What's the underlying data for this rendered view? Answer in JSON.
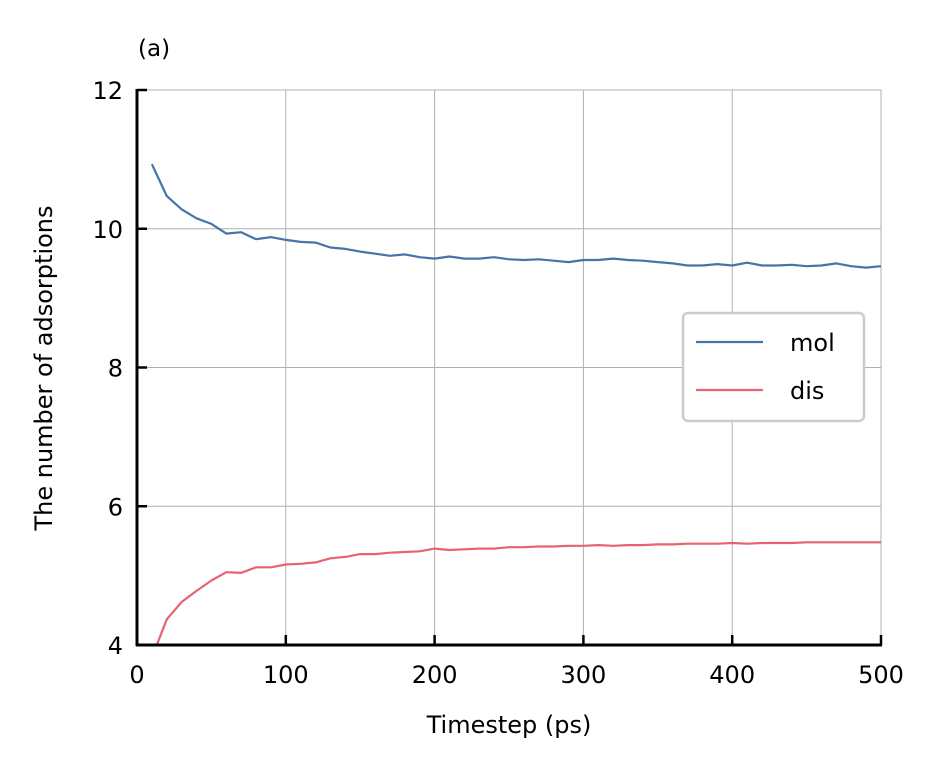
{
  "panel_label": "(a)",
  "chart_data": {
    "type": "line",
    "xlabel": "Timestep (ps)",
    "ylabel": "The number of adsorptions",
    "xlim": [
      0,
      500
    ],
    "ylim": [
      4,
      12
    ],
    "xticks": [
      0,
      100,
      200,
      300,
      400,
      500
    ],
    "yticks": [
      4,
      6,
      8,
      10,
      12
    ],
    "grid": true,
    "legend_position": "center-right",
    "x": [
      10,
      20,
      30,
      40,
      50,
      60,
      70,
      80,
      90,
      100,
      110,
      120,
      130,
      140,
      150,
      160,
      170,
      180,
      190,
      200,
      210,
      220,
      230,
      240,
      250,
      260,
      270,
      280,
      290,
      300,
      310,
      320,
      330,
      340,
      350,
      360,
      370,
      380,
      390,
      400,
      410,
      420,
      430,
      440,
      450,
      460,
      470,
      480,
      490,
      500
    ],
    "series": [
      {
        "name": "mol",
        "color": "#4674a8",
        "values": [
          10.93,
          10.47,
          10.28,
          10.15,
          10.07,
          9.93,
          9.95,
          9.85,
          9.88,
          9.84,
          9.81,
          9.8,
          9.73,
          9.71,
          9.67,
          9.64,
          9.61,
          9.63,
          9.59,
          9.57,
          9.6,
          9.57,
          9.57,
          9.59,
          9.56,
          9.55,
          9.56,
          9.54,
          9.52,
          9.55,
          9.55,
          9.57,
          9.55,
          9.54,
          9.52,
          9.5,
          9.47,
          9.47,
          9.49,
          9.47,
          9.51,
          9.47,
          9.47,
          9.48,
          9.46,
          9.47,
          9.5,
          9.46,
          9.44,
          9.46
        ]
      },
      {
        "name": "dis",
        "color": "#e8636f",
        "values": [
          3.82,
          4.37,
          4.62,
          4.78,
          4.93,
          5.05,
          5.04,
          5.12,
          5.12,
          5.16,
          5.17,
          5.19,
          5.25,
          5.27,
          5.31,
          5.31,
          5.33,
          5.34,
          5.35,
          5.39,
          5.37,
          5.38,
          5.39,
          5.39,
          5.41,
          5.41,
          5.42,
          5.42,
          5.43,
          5.43,
          5.44,
          5.43,
          5.44,
          5.44,
          5.45,
          5.45,
          5.46,
          5.46,
          5.46,
          5.47,
          5.46,
          5.47,
          5.47,
          5.47,
          5.48,
          5.48,
          5.48,
          5.48,
          5.48,
          5.48
        ]
      }
    ]
  }
}
